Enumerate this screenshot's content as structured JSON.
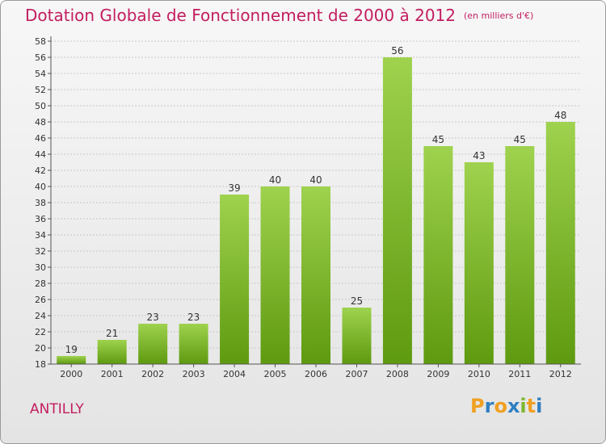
{
  "title": "Dotation Globale de Fonctionnement de 2000 à 2012",
  "unit_note": "(en milliers d'€)",
  "commune": "ANTILLY",
  "brand": {
    "letters": [
      "P",
      "r",
      "o",
      "x",
      "i",
      "t",
      "i"
    ],
    "colors": [
      "#f0a020",
      "#2f7fc1",
      "#f0a020",
      "#2f7fc1",
      "#7cb82f",
      "#f0a020",
      "#2f7fc1"
    ]
  },
  "colors": {
    "accent": "#c21d5f",
    "bar_top": "#9fd24e",
    "bar_bottom": "#5e9a10"
  },
  "chart_data": {
    "type": "bar",
    "categories": [
      "2000",
      "2001",
      "2002",
      "2003",
      "2004",
      "2005",
      "2006",
      "2007",
      "2008",
      "2009",
      "2010",
      "2011",
      "2012"
    ],
    "values": [
      19,
      21,
      23,
      23,
      39,
      40,
      40,
      25,
      56,
      45,
      43,
      45,
      48
    ],
    "ylim": [
      18,
      58
    ],
    "yticks": [
      18,
      20,
      22,
      24,
      26,
      28,
      30,
      32,
      34,
      36,
      38,
      40,
      42,
      44,
      46,
      48,
      50,
      52,
      54,
      56,
      58
    ],
    "grid": true,
    "data_labels": true
  }
}
